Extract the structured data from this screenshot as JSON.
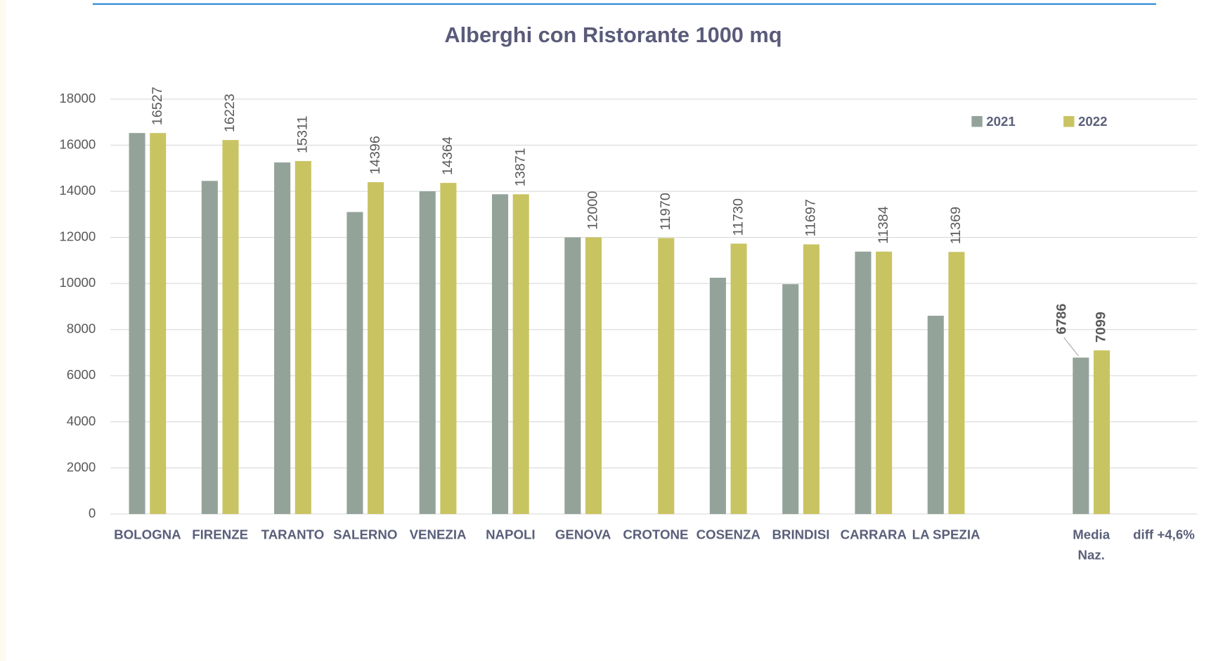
{
  "chart_data": {
    "type": "bar",
    "title": "Alberghi con Ristorante 1000 mq",
    "categories": [
      "BOLOGNA",
      "FIRENZE",
      "TARANTO",
      "SALERNO",
      "VENEZIA",
      "NAPOLI",
      "GENOVA",
      "CROTONE",
      "COSENZA",
      "BRINDISI",
      "CARRARA",
      "LA SPEZIA",
      null,
      "Media Naz.",
      "diff +4,6%"
    ],
    "series": [
      {
        "name": "2021",
        "color": "#93a39a",
        "values": [
          16527,
          14450,
          15250,
          13100,
          14000,
          13871,
          12000,
          null,
          10250,
          9970,
          11384,
          8600,
          null,
          6786,
          null
        ],
        "value_labels": [
          null,
          null,
          null,
          null,
          null,
          null,
          null,
          null,
          null,
          null,
          null,
          null,
          null,
          "6786",
          null
        ]
      },
      {
        "name": "2022",
        "color": "#c9c462",
        "values": [
          16527,
          16223,
          15311,
          14396,
          14364,
          13871,
          12000,
          11970,
          11730,
          11697,
          11384,
          11369,
          null,
          7099,
          null
        ]
      }
    ],
    "ylim": [
      0,
      18000
    ],
    "yticks": [
      0,
      2000,
      4000,
      6000,
      8000,
      10000,
      12000,
      14000,
      16000,
      18000
    ],
    "grid": true,
    "legend": "top-right"
  }
}
